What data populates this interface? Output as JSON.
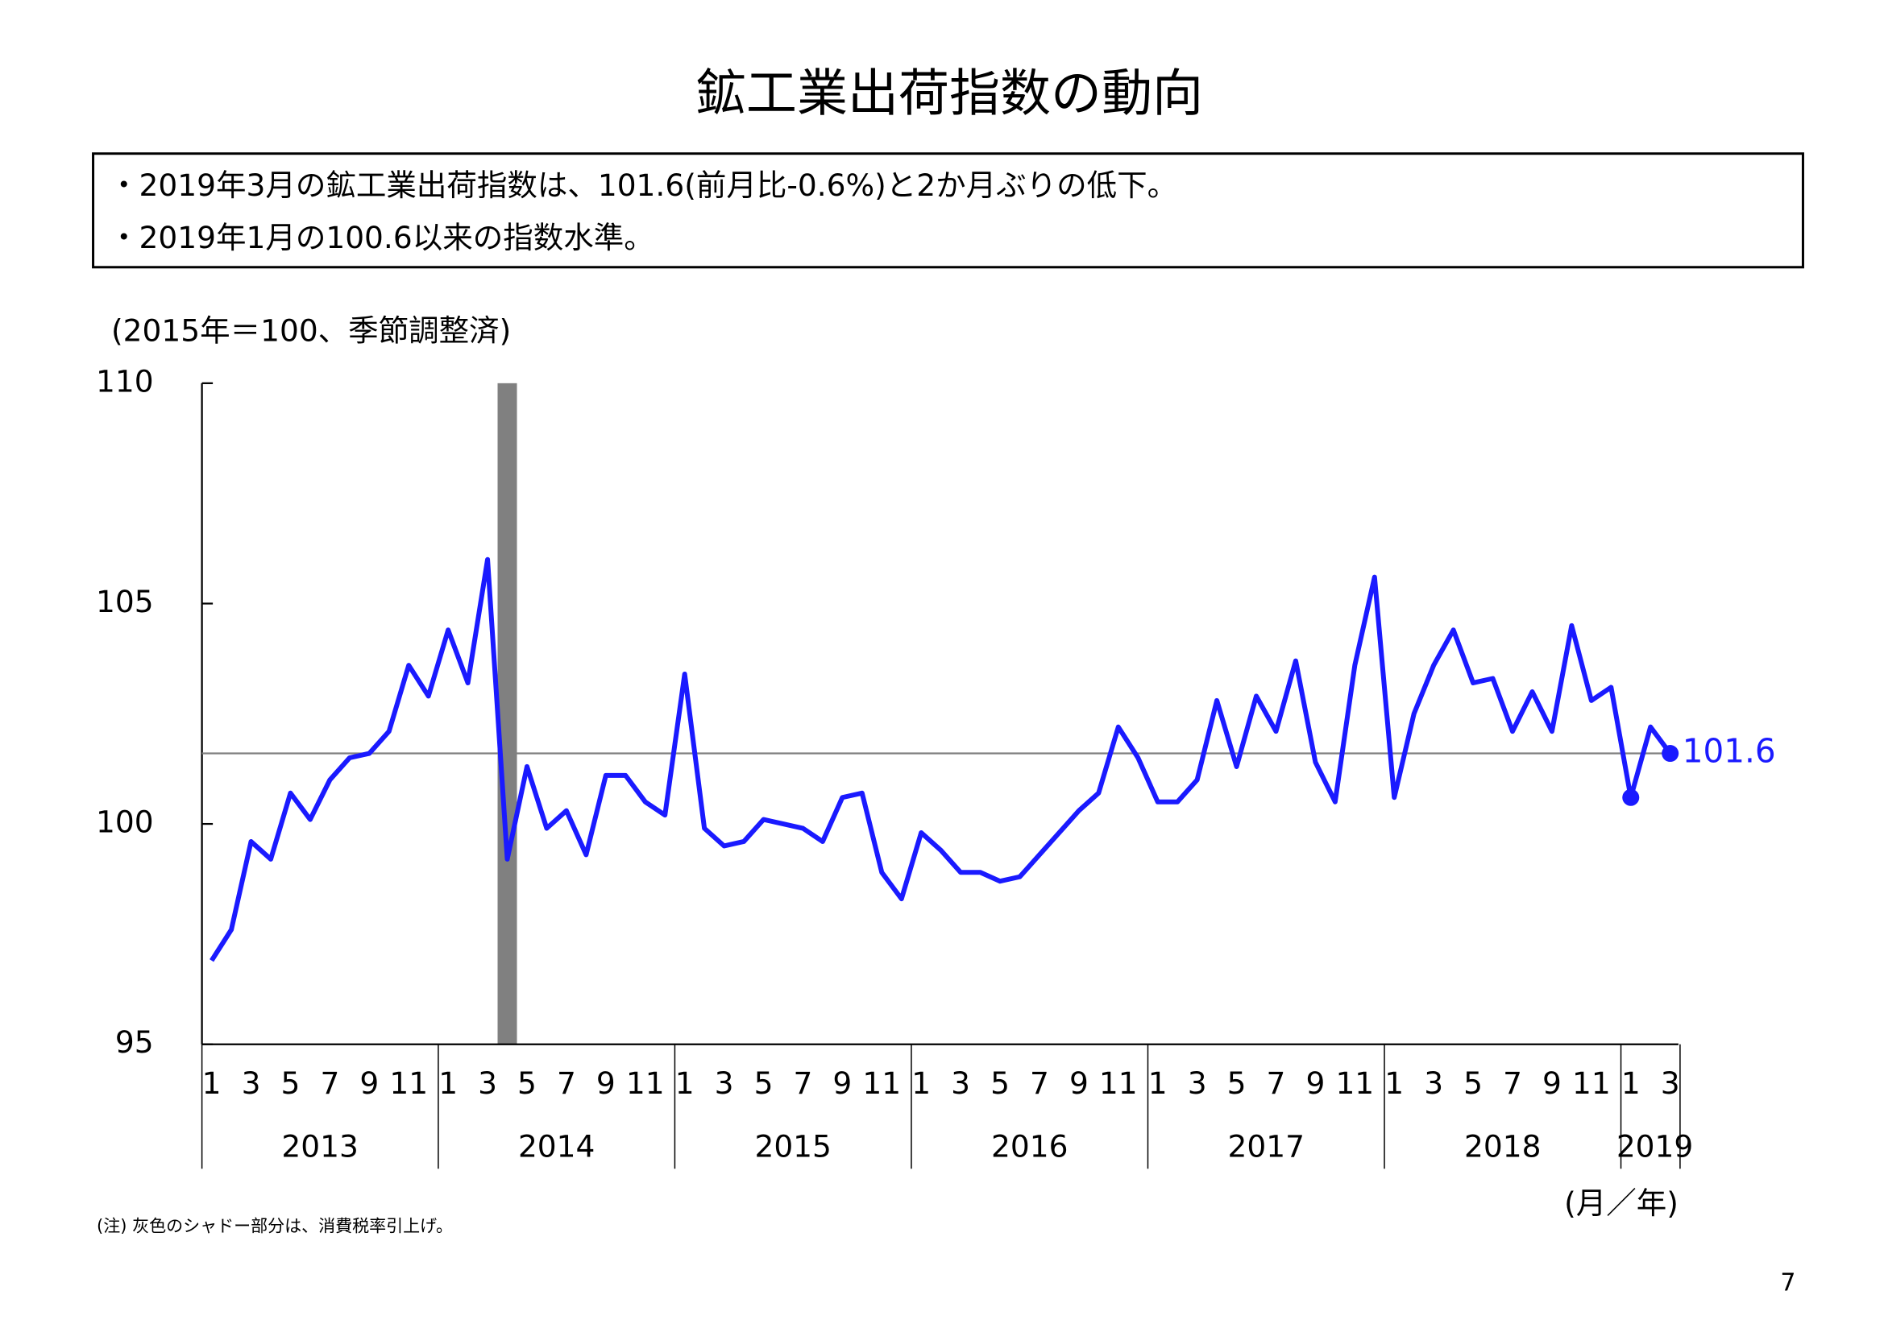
{
  "chart_data": {
    "type": "line",
    "title": "鉱工業出荷指数の動向",
    "notes": [
      "・2019年3月の鉱工業出荷指数は、101.6(前月比-0.6%)と2か月ぶりの低下。",
      "・2019年1月の100.6以来の指数水準。"
    ],
    "y_label": "(2015年＝100、季節調整済)",
    "x_label": "(月／年)",
    "footnote": "(注) 灰色のシャドー部分は、消費税率引上げ。",
    "page_number": "7",
    "categories": [
      "1",
      null,
      "3",
      null,
      "5",
      null,
      "7",
      null,
      "9",
      null,
      "11",
      null,
      "1",
      null,
      "3",
      null,
      "5",
      null,
      "7",
      null,
      "9",
      null,
      "11",
      null,
      "1",
      null,
      "3",
      null,
      "5",
      null,
      "7",
      null,
      "9",
      null,
      "11",
      null,
      "1",
      null,
      "3",
      null,
      "5",
      null,
      "7",
      null,
      "9",
      null,
      "11",
      null,
      "1",
      null,
      "3",
      null,
      "5",
      null,
      "7",
      null,
      "9",
      null,
      "11",
      null,
      "1",
      null,
      "3",
      null,
      "5",
      null,
      "7",
      null,
      "9",
      null,
      "11",
      null,
      "1",
      null,
      "3"
    ],
    "year_groups": [
      {
        "label": "2013",
        "months": 12
      },
      {
        "label": "2014",
        "months": 12
      },
      {
        "label": "2015",
        "months": 12
      },
      {
        "label": "2016",
        "months": 12
      },
      {
        "label": "2017",
        "months": 12
      },
      {
        "label": "2018",
        "months": 12
      },
      {
        "label": "2019",
        "months": 3
      }
    ],
    "series": [
      {
        "name": "鉱工業出荷指数",
        "color": "#1a1aff",
        "values": [
          96.9,
          97.6,
          99.6,
          99.2,
          100.7,
          100.1,
          101.0,
          101.5,
          101.6,
          102.1,
          103.6,
          102.9,
          104.4,
          103.2,
          106.0,
          99.2,
          101.3,
          99.9,
          100.3,
          99.3,
          101.1,
          101.1,
          100.5,
          100.2,
          103.4,
          99.9,
          99.5,
          99.6,
          100.1,
          100.0,
          99.9,
          99.6,
          100.6,
          100.7,
          98.9,
          98.3,
          99.8,
          99.4,
          98.9,
          98.9,
          98.7,
          98.8,
          99.3,
          99.8,
          100.3,
          100.7,
          102.2,
          101.5,
          100.5,
          100.5,
          101.0,
          102.8,
          101.3,
          102.9,
          102.1,
          103.7,
          101.4,
          100.5,
          103.6,
          105.6,
          100.6,
          102.5,
          103.6,
          104.4,
          103.2,
          103.3,
          102.1,
          103.0,
          102.1,
          104.5,
          102.8,
          103.1,
          100.6,
          102.2,
          101.6
        ],
        "value_labels": [
          null,
          null,
          null,
          null,
          null,
          null,
          null,
          null,
          null,
          null,
          null,
          null,
          null,
          null,
          null,
          null,
          null,
          null,
          null,
          null,
          null,
          null,
          null,
          null,
          null,
          null,
          null,
          null,
          null,
          null,
          null,
          null,
          null,
          null,
          null,
          null,
          null,
          null,
          null,
          null,
          null,
          null,
          null,
          null,
          null,
          null,
          null,
          null,
          null,
          null,
          null,
          null,
          null,
          null,
          null,
          null,
          null,
          null,
          null,
          null,
          null,
          null,
          null,
          null,
          null,
          null,
          null,
          null,
          null,
          null,
          null,
          null,
          null,
          null,
          "101.6"
        ]
      }
    ],
    "highlight_points": [
      72,
      74
    ],
    "reference_line": 101.6,
    "reference_color": "#808080",
    "shade_index": 15,
    "shade_color": "#808080",
    "ylim": [
      95,
      110
    ],
    "yticks": [
      95,
      100,
      105,
      110
    ]
  }
}
